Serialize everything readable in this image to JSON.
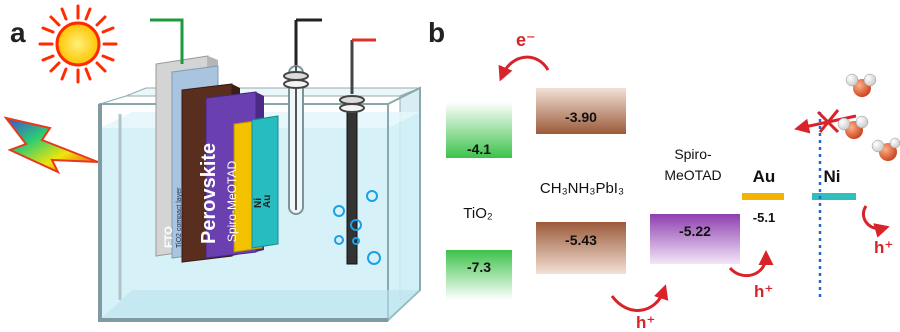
{
  "panel_a": {
    "label": "a",
    "layers": {
      "fto": "FTO",
      "tio2": "TiO2 compact layer",
      "perovskite": "Perovskite",
      "spiro": "Spiro-MeOTAD",
      "ni": "Ni",
      "au": "Au"
    }
  },
  "panel_b": {
    "label": "b",
    "materials": {
      "tio2": "TiO₂",
      "perovskite": "CH₃NH₃PbI₃",
      "spiro_line1": "Spiro-",
      "spiro_line2": "MeOTAD",
      "au": "Au",
      "ni": "Ni"
    },
    "levels": {
      "tio2_cb": "-4.1",
      "tio2_vb": "-7.3",
      "perov_cb": "-3.90",
      "perov_vb": "-5.43",
      "spiro": "-5.22",
      "au": "-5.1"
    },
    "carriers": {
      "electron": "e⁻",
      "hole1": "h⁺",
      "hole2": "h⁺",
      "hole3": "h⁺"
    }
  },
  "colors": {
    "tio2_green": "#3cc24a",
    "perov_brown": "#9b5a3a",
    "spiro_purple": "#8e3fb0",
    "au_gold": "#f2b400",
    "ni_teal": "#2fbfbf",
    "arrow_red": "#d8232a",
    "water_blue": "#bfe8f2",
    "dotted_blue": "#2a66c8"
  }
}
